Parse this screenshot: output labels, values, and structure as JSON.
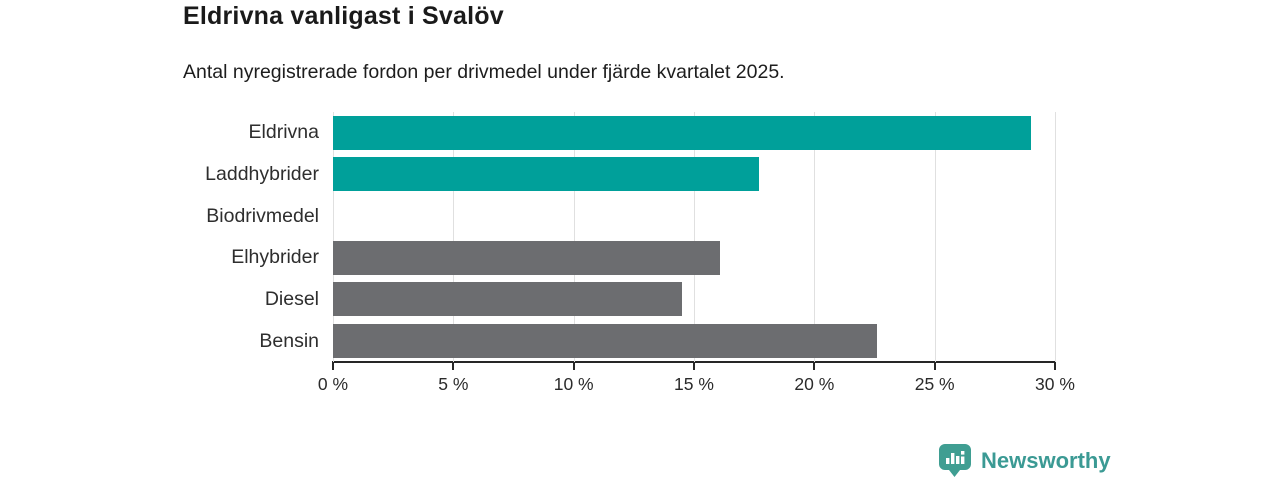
{
  "header": {
    "title": "Eldrivna vanligast i Svalöv",
    "subtitle": "Antal nyregistrerade fordon per drivmedel under fjärde kvartalet 2025."
  },
  "chart_data": {
    "type": "bar",
    "orientation": "horizontal",
    "title": "Eldrivna vanligast i Svalöv",
    "subtitle": "Antal nyregistrerade fordon per drivmedel under fjärde kvartalet 2025.",
    "categories": [
      "Eldrivna",
      "Laddhybrider",
      "Biodrivmedel",
      "Elhybrider",
      "Diesel",
      "Bensin"
    ],
    "values": [
      29.0,
      17.7,
      0,
      16.1,
      14.5,
      22.6
    ],
    "bar_colors": [
      "#00a09a",
      "#00a09a",
      "#6c6d70",
      "#6c6d70",
      "#6c6d70",
      "#6c6d70"
    ],
    "highlight_color": "#00a09a",
    "default_color": "#6c6d70",
    "xlim": [
      0,
      30
    ],
    "x_tick_values": [
      0,
      5,
      10,
      15,
      20,
      25,
      30
    ],
    "x_tick_labels": [
      "0 %",
      "5 %",
      "10 %",
      "15 %",
      "20 %",
      "25 %",
      "30 %"
    ],
    "xlabel": "",
    "ylabel": "",
    "grid": "vertical-light",
    "legend": "none"
  },
  "branding": {
    "logo_text": "Newsworthy",
    "logo_color": "#3b9a94",
    "logo_icon": "newsworthy-pin-barchart-icon"
  }
}
